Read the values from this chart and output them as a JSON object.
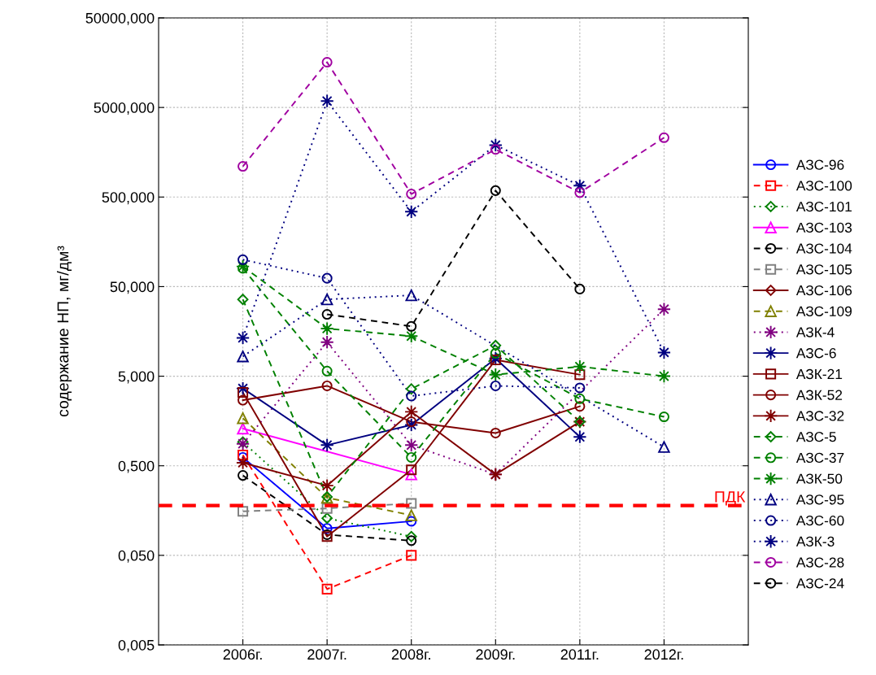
{
  "chart_data": {
    "type": "line",
    "ylabel": "содержание НП, мг/дм³",
    "categories": [
      "2006г.",
      "2007г.",
      "2008г.",
      "2009г.",
      "2011г.",
      "2012г."
    ],
    "log": "y",
    "ylim": [
      0.005,
      50000
    ],
    "yticks": [
      {
        "value": 0.005,
        "label": "0,005"
      },
      {
        "value": 0.05,
        "label": "0,050"
      },
      {
        "value": 0.5,
        "label": "0,500"
      },
      {
        "value": 5,
        "label": "5,000"
      },
      {
        "value": 50,
        "label": "50,000"
      },
      {
        "value": 500,
        "label": "500,000"
      },
      {
        "value": 5000,
        "label": "5000,000"
      },
      {
        "value": 50000,
        "label": "50000,000"
      }
    ],
    "grid": true,
    "legend": "right",
    "ref_lines": [
      {
        "axis": "y",
        "value": 0.18,
        "label": "ПДК",
        "color": "#ff0000",
        "line_style": "dashed"
      }
    ],
    "series": [
      {
        "name": "АЗС-96",
        "color": "#0000ff",
        "marker": "circle",
        "line_style": "solid",
        "values": [
          0.62,
          0.1,
          0.12,
          null,
          null,
          null
        ]
      },
      {
        "name": "АЗС-100",
        "color": "#ff0000",
        "marker": "square",
        "line_style": "dashed",
        "values": [
          0.66,
          0.021,
          0.05,
          null,
          null,
          null
        ]
      },
      {
        "name": "АЗС-101",
        "color": "#008000",
        "marker": "diamond",
        "line_style": "dotted",
        "values": [
          0.92,
          0.13,
          0.081,
          null,
          null,
          null
        ]
      },
      {
        "name": "АЗС-103",
        "color": "#ff00ff",
        "marker": "triangle",
        "line_style": "solid",
        "values": [
          1.3,
          null,
          0.4,
          null,
          null,
          null
        ]
      },
      {
        "name": "АЗС-104",
        "color": "#000000",
        "marker": "circle",
        "line_style": "dashed",
        "values": [
          0.39,
          0.085,
          0.073,
          null,
          null,
          null
        ]
      },
      {
        "name": "АЗС-105",
        "color": "#808080",
        "marker": "square",
        "line_style": "dashed",
        "values": [
          0.155,
          0.167,
          0.19,
          null,
          null,
          null
        ]
      },
      {
        "name": "АЗС-106",
        "color": "#800000",
        "marker": "diamond",
        "line_style": "solid",
        "values": [
          null,
          null,
          null,
          null,
          null,
          null
        ]
      },
      {
        "name": "АЗС-109",
        "color": "#808000",
        "marker": "triangle",
        "line_style": "dashed",
        "values": [
          1.7,
          0.22,
          0.14,
          null,
          null,
          null
        ]
      },
      {
        "name": "АЗК-4",
        "color": "#800080",
        "marker": "star",
        "line_style": "dotted",
        "values": [
          0.88,
          12,
          0.85,
          0.4,
          null,
          28
        ]
      },
      {
        "name": "АЗС-6",
        "color": "#000080",
        "marker": "star",
        "line_style": "solid",
        "values": [
          3.65,
          0.85,
          1.43,
          7.9,
          1.05,
          null
        ]
      },
      {
        "name": "АЗК-21",
        "color": "#800000",
        "marker": "square",
        "line_style": "solid",
        "values": [
          3.3,
          0.081,
          0.45,
          7.6,
          5.2,
          null
        ]
      },
      {
        "name": "АЗК-52",
        "color": "#800000",
        "marker": "circle",
        "line_style": "solid",
        "values": [
          2.7,
          3.9,
          1.55,
          1.16,
          2.3,
          null
        ]
      },
      {
        "name": "АЗС-32",
        "color": "#800000",
        "marker": "star",
        "line_style": "solid",
        "values": [
          0.54,
          0.3,
          2.0,
          0.4,
          1.55,
          null
        ]
      },
      {
        "name": "АЗС-5",
        "color": "#008000",
        "marker": "diamond",
        "line_style": "dashed",
        "values": [
          36,
          0.225,
          3.6,
          11,
          1.55,
          null
        ]
      },
      {
        "name": "АЗС-37",
        "color": "#008000",
        "marker": "circle",
        "line_style": "dashed",
        "values": [
          80,
          5.7,
          0.62,
          9,
          2.8,
          1.76
        ]
      },
      {
        "name": "АЗК-50",
        "color": "#008000",
        "marker": "star",
        "line_style": "dashed",
        "values": [
          84,
          17,
          14,
          5.2,
          6.4,
          5.0
        ]
      },
      {
        "name": "АЗС-95",
        "color": "#000080",
        "marker": "triangle",
        "line_style": "dotted",
        "values": [
          8.3,
          36,
          40,
          null,
          null,
          0.81
        ]
      },
      {
        "name": "АЗС-60",
        "color": "#000080",
        "marker": "circle",
        "line_style": "dotted",
        "values": [
          100,
          62,
          3.0,
          3.9,
          3.7,
          null
        ]
      },
      {
        "name": "АЗК-3",
        "color": "#000080",
        "marker": "star",
        "line_style": "dotted",
        "values": [
          13.4,
          5900,
          343,
          1900,
          670,
          9.2
        ]
      },
      {
        "name": "АЗС-28",
        "color": "#a000a0",
        "marker": "circle",
        "line_style": "dashed",
        "values": [
          1100,
          16000,
          540,
          1700,
          560,
          2300
        ]
      },
      {
        "name": "АЗС-24",
        "color": "#000000",
        "marker": "circle",
        "line_style": "dashed",
        "values": [
          null,
          24.5,
          18,
          590,
          47,
          null
        ]
      }
    ]
  }
}
